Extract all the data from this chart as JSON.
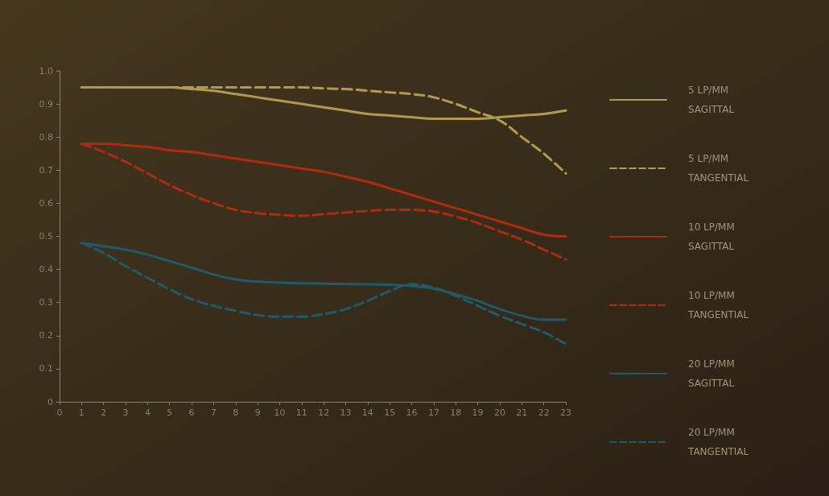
{
  "chart_data": {
    "type": "line",
    "x": [
      1,
      2,
      3,
      4,
      5,
      6,
      7,
      8,
      9,
      10,
      11,
      12,
      13,
      14,
      15,
      16,
      17,
      18,
      19,
      20,
      21,
      22,
      23
    ],
    "xlim": [
      0,
      23
    ],
    "xticks": [
      0,
      1,
      2,
      3,
      4,
      5,
      6,
      7,
      8,
      9,
      10,
      11,
      12,
      13,
      14,
      15,
      16,
      17,
      18,
      19,
      20,
      21,
      22,
      23
    ],
    "ylim": [
      0,
      1
    ],
    "yticks": [
      0,
      0.1,
      0.2,
      0.3,
      0.4,
      0.5,
      0.6,
      0.7,
      0.8,
      0.9,
      {
        "value": 1,
        "label": "1.0"
      }
    ],
    "grid": false,
    "legend": "right",
    "marker": "none",
    "series": [
      {
        "name": "5 LP/MM\nSAGITTAL",
        "color": "#b09a4e",
        "line_style": "solid",
        "values": [
          0.95,
          0.95,
          0.95,
          0.95,
          0.95,
          0.945,
          0.94,
          0.93,
          0.92,
          0.91,
          0.9,
          0.89,
          0.88,
          0.87,
          0.865,
          0.86,
          0.855,
          0.855,
          0.855,
          0.86,
          0.865,
          0.87,
          0.88
        ]
      },
      {
        "name": "5 LP/MM\nTANGENTIAL",
        "color": "#b09a4e",
        "line_style": "dashed",
        "values": [
          0.95,
          0.95,
          0.95,
          0.95,
          0.95,
          0.95,
          0.95,
          0.95,
          0.95,
          0.95,
          0.95,
          0.947,
          0.945,
          0.94,
          0.935,
          0.93,
          0.92,
          0.9,
          0.875,
          0.85,
          0.8,
          0.75,
          0.69
        ]
      },
      {
        "name": "10 LP/MM\nSAGITTAL",
        "color": "#b02a10",
        "line_style": "solid",
        "values": [
          0.78,
          0.78,
          0.775,
          0.77,
          0.76,
          0.755,
          0.745,
          0.735,
          0.725,
          0.715,
          0.705,
          0.695,
          0.68,
          0.665,
          0.645,
          0.625,
          0.605,
          0.585,
          0.565,
          0.545,
          0.525,
          0.505,
          0.5
        ]
      },
      {
        "name": "10 LP/MM\nTANGENTIAL",
        "color": "#b02a10",
        "line_style": "dashed",
        "values": [
          0.78,
          0.755,
          0.725,
          0.69,
          0.655,
          0.625,
          0.6,
          0.58,
          0.57,
          0.565,
          0.562,
          0.567,
          0.572,
          0.577,
          0.58,
          0.58,
          0.575,
          0.56,
          0.54,
          0.515,
          0.49,
          0.46,
          0.43
        ]
      },
      {
        "name": "20 LP/MM\nSAGITTAL",
        "color": "#1e5a6a",
        "line_style": "solid",
        "values": [
          0.48,
          0.47,
          0.46,
          0.445,
          0.425,
          0.405,
          0.385,
          0.37,
          0.363,
          0.36,
          0.358,
          0.357,
          0.356,
          0.355,
          0.354,
          0.35,
          0.342,
          0.325,
          0.305,
          0.28,
          0.26,
          0.248,
          0.248
        ]
      },
      {
        "name": "20 LP/MM\nTANGENTIAL",
        "color": "#1e5a6a",
        "line_style": "dashed",
        "values": [
          0.48,
          0.45,
          0.41,
          0.375,
          0.34,
          0.31,
          0.29,
          0.275,
          0.262,
          0.257,
          0.257,
          0.265,
          0.28,
          0.305,
          0.335,
          0.355,
          0.345,
          0.32,
          0.29,
          0.26,
          0.235,
          0.21,
          0.175
        ]
      }
    ]
  }
}
